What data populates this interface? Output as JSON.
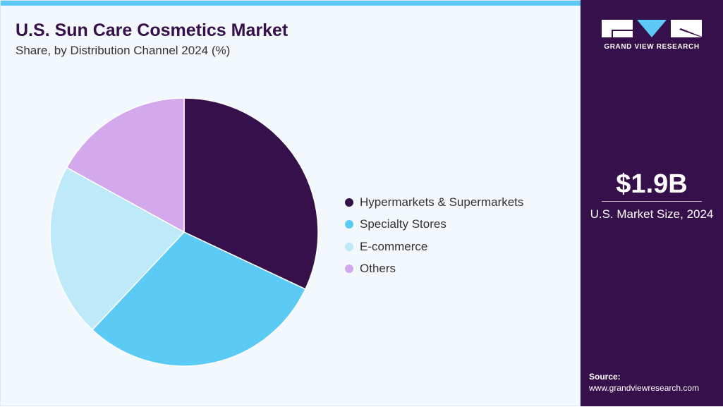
{
  "title": "U.S. Sun Care Cosmetics Market",
  "subtitle": "Share, by Distribution Channel 2024 (%)",
  "chart_data": {
    "type": "pie",
    "title": "U.S. Sun Care Cosmetics Market",
    "subtitle": "Share, by Distribution Channel 2024 (%)",
    "categories": [
      "Hypermarkets & Supermarkets",
      "Specialty Stores",
      "E-commerce",
      "Others"
    ],
    "values": [
      32,
      30,
      21,
      17
    ],
    "colors": [
      "#36104a",
      "#5bcbf5",
      "#bde9f9",
      "#d3a8ec"
    ],
    "legend": "right"
  },
  "sidebar": {
    "logo_text": "GRAND VIEW RESEARCH",
    "market_size": "$1.9B",
    "market_label": "U.S. Market Size, 2024",
    "source_label": "Source:",
    "source_url": "www.grandviewresearch.com"
  }
}
